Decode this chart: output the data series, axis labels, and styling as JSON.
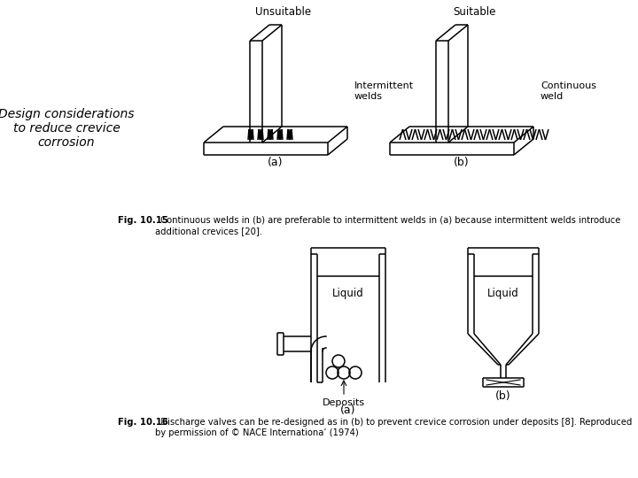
{
  "background_color": "#ffffff",
  "title_text": "Design considerations\nto reduce crevice\ncorrosion",
  "fig1_caption_bold": "Fig. 10.15",
  "fig1_caption_normal": "  Continuous welds in (b) are preferable to intermittent welds in (a) because intermittent welds introduce\nadditional crevices [20].",
  "fig2_caption_bold": "Fig. 10.16",
  "fig2_caption_normal": "  Discharge valves can be re-designed as in (b) to prevent crevice corrosion under deposits [8]. Reproduced\nby permission of © NACE Internationa’ (1974)",
  "unsuitable_label": "Unsuitable",
  "suitable_label": "Suitable",
  "intermittent_label": "Intermittent\nwelds",
  "continuous_label": "Continuous\nweld",
  "liquid_label": "Liquid",
  "deposits_label": "Deposits",
  "line_color": "#000000",
  "line_width": 1.2
}
